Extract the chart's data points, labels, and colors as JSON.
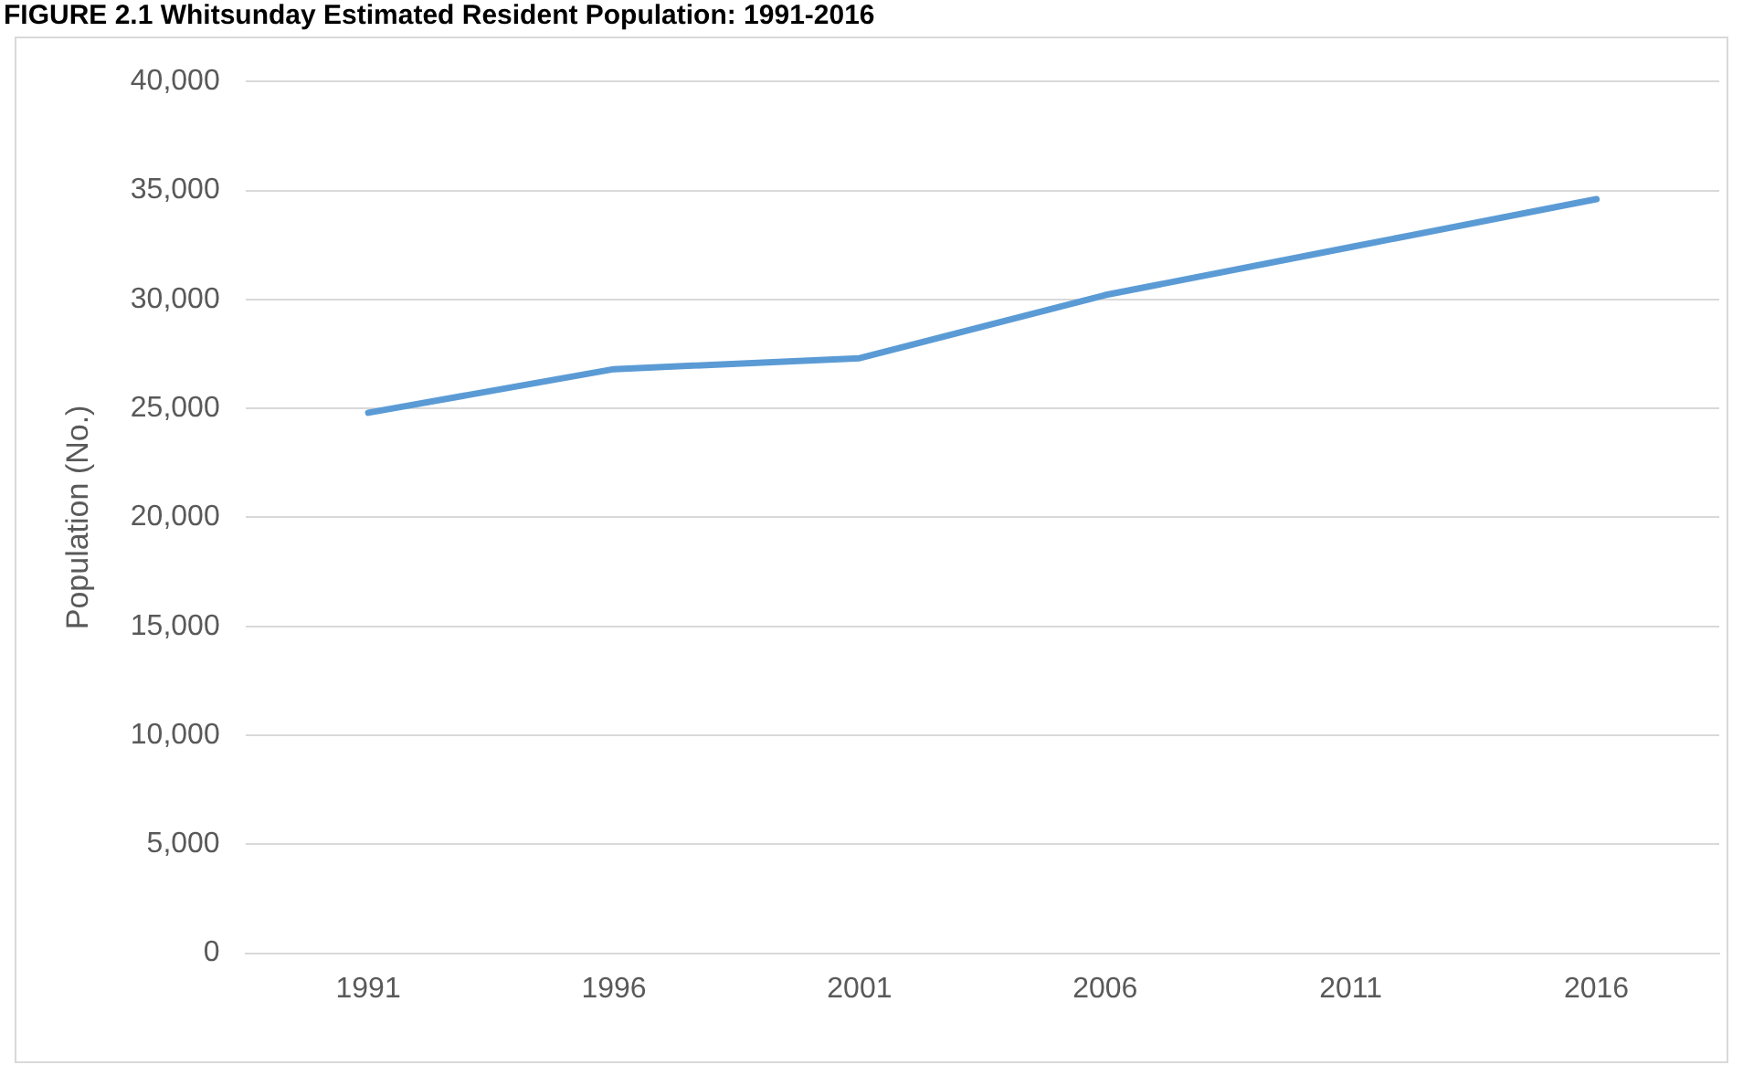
{
  "chart_data": {
    "type": "line",
    "title": "FIGURE 2.1 Whitsunday Estimated Resident Population: 1991-2016",
    "ylabel": "Population (No.)",
    "categories": [
      "1991",
      "1996",
      "2001",
      "2006",
      "2011",
      "2016"
    ],
    "series": [
      {
        "color": "#5b9bd5",
        "values": [
          24800,
          26800,
          27300,
          30200,
          32400,
          34600
        ]
      }
    ],
    "ylim": [
      0,
      40000
    ],
    "yticks": [
      {
        "value": 0,
        "label": "0"
      },
      {
        "value": 5000,
        "label": "5,000"
      },
      {
        "value": 10000,
        "label": "10,000"
      },
      {
        "value": 15000,
        "label": "15,000"
      },
      {
        "value": 20000,
        "label": "20,000"
      },
      {
        "value": 25000,
        "label": "25,000"
      },
      {
        "value": 30000,
        "label": "30,000"
      },
      {
        "value": 35000,
        "label": "35,000"
      },
      {
        "value": 40000,
        "label": "40,000"
      }
    ],
    "grid": "y",
    "legend": false,
    "marker": "none",
    "line_style": "solid"
  }
}
